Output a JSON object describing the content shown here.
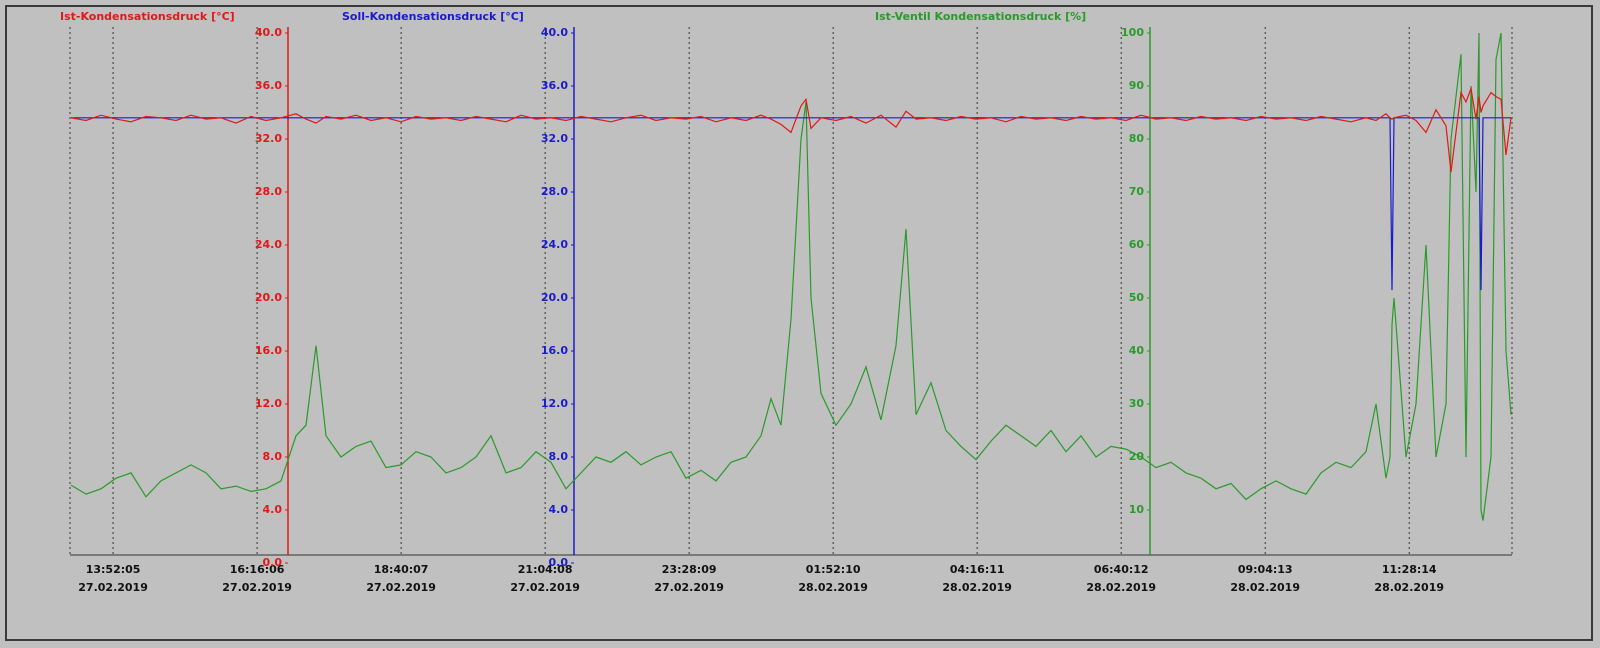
{
  "chart_data": {
    "type": "line",
    "x": [
      "2019-02-27T13:10:00",
      "2019-02-27T13:25:00",
      "2019-02-27T13:40:00",
      "2019-02-27T13:55:00",
      "2019-02-27T14:10:00",
      "2019-02-27T14:25:00",
      "2019-02-27T14:40:00",
      "2019-02-27T14:55:00",
      "2019-02-27T15:10:00",
      "2019-02-27T15:25:00",
      "2019-02-27T15:40:00",
      "2019-02-27T15:55:00",
      "2019-02-27T16:10:00",
      "2019-02-27T16:25:00",
      "2019-02-27T16:40:00",
      "2019-02-27T16:55:00",
      "2019-02-27T17:05:00",
      "2019-02-27T17:15:00",
      "2019-02-27T17:25:00",
      "2019-02-27T17:40:00",
      "2019-02-27T17:55:00",
      "2019-02-27T18:10:00",
      "2019-02-27T18:25:00",
      "2019-02-27T18:40:00",
      "2019-02-27T18:55:00",
      "2019-02-27T19:10:00",
      "2019-02-27T19:25:00",
      "2019-02-27T19:40:00",
      "2019-02-27T19:55:00",
      "2019-02-27T20:10:00",
      "2019-02-27T20:25:00",
      "2019-02-27T20:40:00",
      "2019-02-27T20:55:00",
      "2019-02-27T21:10:00",
      "2019-02-27T21:25:00",
      "2019-02-27T21:40:00",
      "2019-02-27T21:55:00",
      "2019-02-27T22:10:00",
      "2019-02-27T22:25:00",
      "2019-02-27T22:40:00",
      "2019-02-27T22:55:00",
      "2019-02-27T23:10:00",
      "2019-02-27T23:25:00",
      "2019-02-27T23:40:00",
      "2019-02-27T23:55:00",
      "2019-02-28T00:10:00",
      "2019-02-28T00:25:00",
      "2019-02-28T00:40:00",
      "2019-02-28T00:50:00",
      "2019-02-28T01:00:00",
      "2019-02-28T01:10:00",
      "2019-02-28T01:20:00",
      "2019-02-28T01:25:00",
      "2019-02-28T01:30:00",
      "2019-02-28T01:40:00",
      "2019-02-28T01:55:00",
      "2019-02-28T02:10:00",
      "2019-02-28T02:25:00",
      "2019-02-28T02:40:00",
      "2019-02-28T02:55:00",
      "2019-02-28T03:05:00",
      "2019-02-28T03:15:00",
      "2019-02-28T03:30:00",
      "2019-02-28T03:45:00",
      "2019-02-28T04:00:00",
      "2019-02-28T04:15:00",
      "2019-02-28T04:30:00",
      "2019-02-28T04:45:00",
      "2019-02-28T05:00:00",
      "2019-02-28T05:15:00",
      "2019-02-28T05:30:00",
      "2019-02-28T05:45:00",
      "2019-02-28T06:00:00",
      "2019-02-28T06:15:00",
      "2019-02-28T06:30:00",
      "2019-02-28T06:45:00",
      "2019-02-28T07:00:00",
      "2019-02-28T07:15:00",
      "2019-02-28T07:30:00",
      "2019-02-28T07:45:00",
      "2019-02-28T08:00:00",
      "2019-02-28T08:15:00",
      "2019-02-28T08:30:00",
      "2019-02-28T08:45:00",
      "2019-02-28T09:00:00",
      "2019-02-28T09:15:00",
      "2019-02-28T09:30:00",
      "2019-02-28T09:45:00",
      "2019-02-28T10:00:00",
      "2019-02-28T10:15:00",
      "2019-02-28T10:30:00",
      "2019-02-28T10:45:00",
      "2019-02-28T10:55:00",
      "2019-02-28T11:05:00",
      "2019-02-28T11:09:00",
      "2019-02-28T11:11:00",
      "2019-02-28T11:13:00",
      "2019-02-28T11:25:00",
      "2019-02-28T11:35:00",
      "2019-02-28T11:45:00",
      "2019-02-28T11:55:00",
      "2019-02-28T12:05:00",
      "2019-02-28T12:10:00",
      "2019-02-28T12:20:00",
      "2019-02-28T12:25:00",
      "2019-02-28T12:30:00",
      "2019-02-28T12:35:00",
      "2019-02-28T12:38:00",
      "2019-02-28T12:40:00",
      "2019-02-28T12:42:00",
      "2019-02-28T12:50:00",
      "2019-02-28T12:55:00",
      "2019-02-28T13:00:00",
      "2019-02-28T13:05:00",
      "2019-02-28T13:10:00"
    ],
    "xlim": [
      "2019-02-27T13:09:00",
      "2019-02-28T13:11:00"
    ],
    "xticks": [
      {
        "value": "2019-02-27T13:52:05",
        "label": [
          "13:52:05",
          "27.02.2019"
        ]
      },
      {
        "value": "2019-02-27T16:16:06",
        "label": [
          "16:16:06",
          "27.02.2019"
        ]
      },
      {
        "value": "2019-02-27T18:40:07",
        "label": [
          "18:40:07",
          "27.02.2019"
        ]
      },
      {
        "value": "2019-02-27T21:04:08",
        "label": [
          "21:04:08",
          "27.02.2019"
        ]
      },
      {
        "value": "2019-02-27T23:28:09",
        "label": [
          "23:28:09",
          "27.02.2019"
        ]
      },
      {
        "value": "2019-02-28T01:52:10",
        "label": [
          "01:52:10",
          "28.02.2019"
        ]
      },
      {
        "value": "2019-02-28T04:16:11",
        "label": [
          "04:16:11",
          "28.02.2019"
        ]
      },
      {
        "value": "2019-02-28T06:40:12",
        "label": [
          "06:40:12",
          "28.02.2019"
        ]
      },
      {
        "value": "2019-02-28T09:04:13",
        "label": [
          "09:04:13",
          "28.02.2019"
        ]
      },
      {
        "value": "2019-02-28T11:28:14",
        "label": [
          "11:28:14",
          "28.02.2019"
        ]
      }
    ],
    "ylim": [
      0,
      40
    ],
    "yticks": [
      {
        "value": 0,
        "label": "0.0"
      },
      {
        "value": 4,
        "label": "4.0"
      },
      {
        "value": 8,
        "label": "8.0"
      },
      {
        "value": 12,
        "label": "12.0"
      },
      {
        "value": 16,
        "label": "16.0"
      },
      {
        "value": 20,
        "label": "20.0"
      },
      {
        "value": 24,
        "label": "24.0"
      },
      {
        "value": 28,
        "label": "28.0"
      },
      {
        "value": 32,
        "label": "32.0"
      },
      {
        "value": 36,
        "label": "36.0"
      },
      {
        "value": 40,
        "label": "40.0"
      }
    ],
    "y2lim": [
      0,
      40
    ],
    "y2ticks": [
      {
        "value": 0,
        "label": "0.0"
      },
      {
        "value": 4,
        "label": "4.0"
      },
      {
        "value": 8,
        "label": "8.0"
      },
      {
        "value": 12,
        "label": "12.0"
      },
      {
        "value": 16,
        "label": "16.0"
      },
      {
        "value": 20,
        "label": "20.0"
      },
      {
        "value": 24,
        "label": "24.0"
      },
      {
        "value": 28,
        "label": "28.0"
      },
      {
        "value": 32,
        "label": "32.0"
      },
      {
        "value": 36,
        "label": "36.0"
      },
      {
        "value": 40,
        "label": "40.0"
      }
    ],
    "y3lim": [
      0,
      100
    ],
    "y3ticks": [
      10,
      20,
      30,
      40,
      50,
      60,
      70,
      80,
      90,
      100
    ],
    "grid": true,
    "series": [
      {
        "name": "Ist-Kondensationsdruck [°C]",
        "color": "#e01818",
        "axis": "y",
        "values": [
          33.6,
          33.4,
          33.8,
          33.5,
          33.3,
          33.7,
          33.6,
          33.4,
          33.8,
          33.5,
          33.6,
          33.2,
          33.7,
          33.4,
          33.6,
          33.9,
          33.5,
          33.2,
          33.7,
          33.5,
          33.8,
          33.4,
          33.6,
          33.3,
          33.7,
          33.5,
          33.6,
          33.4,
          33.7,
          33.5,
          33.3,
          33.8,
          33.5,
          33.6,
          33.4,
          33.7,
          33.5,
          33.3,
          33.6,
          33.8,
          33.4,
          33.6,
          33.5,
          33.7,
          33.3,
          33.6,
          33.4,
          33.8,
          33.5,
          33.1,
          32.5,
          34.5,
          35,
          32.8,
          33.6,
          33.4,
          33.7,
          33.2,
          33.8,
          32.9,
          34.1,
          33.5,
          33.6,
          33.4,
          33.7,
          33.5,
          33.6,
          33.3,
          33.7,
          33.5,
          33.6,
          33.4,
          33.7,
          33.5,
          33.6,
          33.4,
          33.8,
          33.5,
          33.6,
          33.4,
          33.7,
          33.5,
          33.6,
          33.4,
          33.7,
          33.5,
          33.6,
          33.4,
          33.7,
          33.5,
          33.3,
          33.6,
          33.4,
          33.9,
          33.6,
          33.5,
          33.6,
          33.8,
          33.4,
          32.5,
          34.2,
          33,
          29.5,
          35.5,
          34.8,
          35.8,
          33.5,
          35.2,
          34,
          34.5,
          35.5,
          35.2,
          35,
          30.8,
          33.6
        ]
      },
      {
        "name": "Soll-Kondensationsdruck [°C]",
        "color": "#1a1ad0",
        "axis": "y2",
        "values": [
          33.6,
          33.6,
          33.6,
          33.6,
          33.6,
          33.6,
          33.6,
          33.6,
          33.6,
          33.6,
          33.6,
          33.6,
          33.6,
          33.6,
          33.6,
          33.6,
          33.6,
          33.6,
          33.6,
          33.6,
          33.6,
          33.6,
          33.6,
          33.6,
          33.6,
          33.6,
          33.6,
          33.6,
          33.6,
          33.6,
          33.6,
          33.6,
          33.6,
          33.6,
          33.6,
          33.6,
          33.6,
          33.6,
          33.6,
          33.6,
          33.6,
          33.6,
          33.6,
          33.6,
          33.6,
          33.6,
          33.6,
          33.6,
          33.6,
          33.6,
          33.6,
          33.6,
          33.6,
          33.6,
          33.6,
          33.6,
          33.6,
          33.6,
          33.6,
          33.6,
          33.6,
          33.6,
          33.6,
          33.6,
          33.6,
          33.6,
          33.6,
          33.6,
          33.6,
          33.6,
          33.6,
          33.6,
          33.6,
          33.6,
          33.6,
          33.6,
          33.6,
          33.6,
          33.6,
          33.6,
          33.6,
          33.6,
          33.6,
          33.6,
          33.6,
          33.6,
          33.6,
          33.6,
          33.6,
          33.6,
          33.6,
          33.6,
          33.6,
          33.6,
          33.6,
          20.6,
          33.6,
          33.6,
          33.6,
          33.6,
          33.6,
          33.6,
          33.6,
          33.6,
          33.6,
          33.6,
          33.6,
          33.6,
          20.6,
          33.6,
          33.6,
          33.6,
          33.6,
          33.6,
          33.6
        ]
      },
      {
        "name": "Ist-Ventil Kondensationsdruck [%]",
        "color": "#2a9a2a",
        "axis": "y3",
        "values": [
          14.7,
          13,
          14,
          16,
          17,
          12.5,
          15.5,
          17,
          18.5,
          17,
          14,
          14.5,
          13.5,
          14,
          15.5,
          24,
          26,
          41,
          24,
          20,
          22,
          23,
          18,
          18.5,
          21,
          20,
          17,
          18,
          20,
          24,
          17,
          18,
          21,
          19,
          14,
          17,
          20,
          19,
          21,
          18.5,
          20,
          21,
          16,
          17.5,
          15.5,
          19,
          20,
          24,
          31,
          26,
          46,
          80,
          87,
          50,
          32,
          26,
          30,
          37,
          27,
          41,
          63,
          28,
          34,
          25,
          22,
          19.5,
          23,
          26,
          24,
          22,
          25,
          21,
          24,
          20,
          22,
          21.5,
          20,
          18,
          19,
          17,
          16,
          14,
          15,
          12,
          14,
          15.5,
          14,
          13,
          17,
          19,
          18,
          21,
          30,
          16,
          20,
          45,
          50,
          20,
          30,
          60,
          20,
          30,
          80,
          96,
          20,
          90,
          70,
          100,
          10,
          8,
          20,
          95,
          100,
          40,
          28
        ]
      }
    ]
  }
}
